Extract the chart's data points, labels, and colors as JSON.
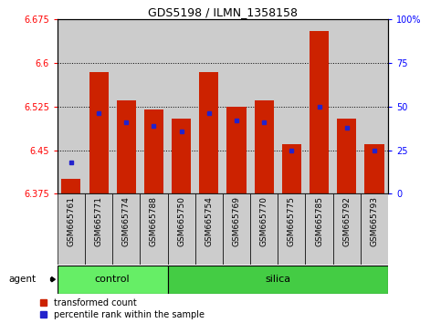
{
  "title": "GDS5198 / ILMN_1358158",
  "samples": [
    "GSM665761",
    "GSM665771",
    "GSM665774",
    "GSM665788",
    "GSM665750",
    "GSM665754",
    "GSM665769",
    "GSM665770",
    "GSM665775",
    "GSM665785",
    "GSM665792",
    "GSM665793"
  ],
  "groups": [
    "control",
    "control",
    "control",
    "control",
    "silica",
    "silica",
    "silica",
    "silica",
    "silica",
    "silica",
    "silica",
    "silica"
  ],
  "red_values": [
    6.4,
    6.585,
    6.535,
    6.52,
    6.505,
    6.585,
    6.525,
    6.535,
    6.46,
    6.655,
    6.505,
    6.46
  ],
  "blue_percentiles": [
    0.18,
    0.46,
    0.41,
    0.39,
    0.36,
    0.46,
    0.42,
    0.41,
    0.25,
    0.5,
    0.38,
    0.25
  ],
  "y_min": 6.375,
  "y_max": 6.675,
  "y_ticks_left": [
    6.375,
    6.45,
    6.525,
    6.6,
    6.675
  ],
  "y_ticks_right_vals": [
    0,
    25,
    50,
    75,
    100
  ],
  "bar_color": "#cc2200",
  "dot_color": "#2222cc",
  "bg_color": "#cccccc",
  "control_color": "#66ee66",
  "silica_color": "#44cc44",
  "bar_width": 0.7,
  "legend1": "transformed count",
  "legend2": "percentile rank within the sample",
  "n_control": 4
}
